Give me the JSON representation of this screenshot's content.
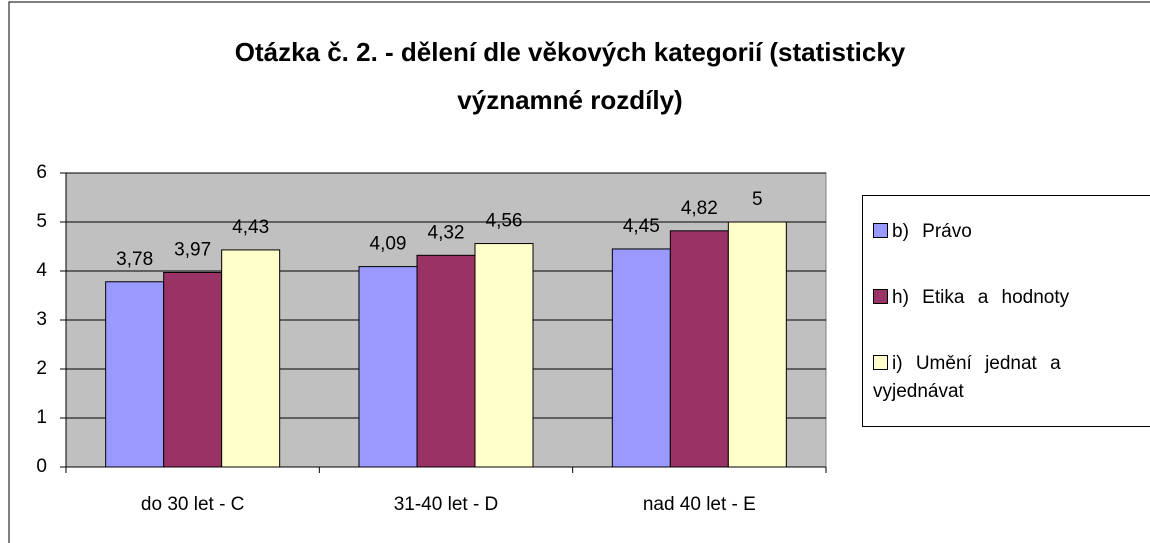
{
  "chart_data": {
    "type": "bar",
    "title": "Otázka č. 2. - dělení dle věkových kategorií (statisticky významné rozdíly)",
    "categories": [
      "do 30 let - C",
      "31-40 let - D",
      "nad 40 let - E"
    ],
    "series": [
      {
        "name": "b) Právo",
        "color": "#9999ff",
        "values": [
          3.78,
          4.09,
          4.45
        ],
        "value_labels": [
          "3,78",
          "4,09",
          "4,45"
        ]
      },
      {
        "name": "h) Etika a hodnoty",
        "color": "#993366",
        "values": [
          3.97,
          4.32,
          4.82
        ],
        "value_labels": [
          "3,97",
          "4,32",
          "4,82"
        ]
      },
      {
        "name": "i) Umění jednat a vyjednávat",
        "color": "#ffffcc",
        "values": [
          4.43,
          4.56,
          5
        ],
        "value_labels": [
          "4,43",
          "4,56",
          "5"
        ]
      }
    ],
    "ylim": [
      0,
      6
    ],
    "yticks": [
      0,
      1,
      2,
      3,
      4,
      5,
      6
    ],
    "grid": true,
    "legend": "right"
  }
}
